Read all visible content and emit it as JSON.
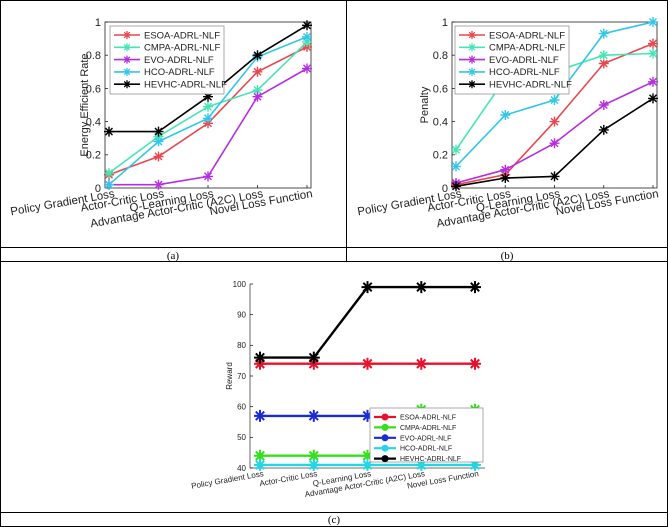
{
  "captions": {
    "a": "(a)",
    "b": "(b)",
    "c": "(c)"
  },
  "chart_data": [
    {
      "type": "line",
      "panel": "a",
      "ylabel": "Energy Efficient Rate",
      "ylim": [
        0,
        1
      ],
      "yticks": [
        "0",
        "0.2",
        "0.4",
        "0.6",
        "0.8",
        "1"
      ],
      "categories": [
        "Policy Gradient Loss",
        "Actor-Critic Loss",
        "Q-Learning Loss",
        "Advantage Actor-Critic (A2C) Loss",
        "Novel Loss Function"
      ],
      "legend_position": "top-left",
      "series": [
        {
          "name": "ESOA-ADRL-NLF",
          "color": "#e8474f",
          "values": [
            0.08,
            0.19,
            0.39,
            0.7,
            0.85
          ]
        },
        {
          "name": "CMPA-ADRL-NLF",
          "color": "#45e6b4",
          "values": [
            0.09,
            0.31,
            0.49,
            0.59,
            0.88
          ]
        },
        {
          "name": "EVO-ADRL-NLF",
          "color": "#b52ee0",
          "values": [
            0.02,
            0.02,
            0.07,
            0.55,
            0.72
          ]
        },
        {
          "name": "HCO-ADRL-NLF",
          "color": "#31c7e8",
          "values": [
            0.02,
            0.28,
            0.42,
            0.79,
            0.91
          ]
        },
        {
          "name": "HEVHC-ADRL-NLF",
          "color": "#000000",
          "values": [
            0.34,
            0.34,
            0.55,
            0.8,
            0.98
          ]
        }
      ]
    },
    {
      "type": "line",
      "panel": "b",
      "ylabel": "Penalty",
      "ylim": [
        0,
        1
      ],
      "yticks": [
        "0",
        "0.2",
        "0.4",
        "0.6",
        "0.8",
        "1"
      ],
      "categories": [
        "Policy Gradient Loss",
        "Actor-Critic Loss",
        "Q-Learning Loss",
        "Advantage Actor-Critic (A2C) Loss",
        "Novel Loss Function"
      ],
      "legend_position": "top-left",
      "series": [
        {
          "name": "ESOA-ADRL-NLF",
          "color": "#e8474f",
          "values": [
            0.02,
            0.08,
            0.4,
            0.75,
            0.87
          ]
        },
        {
          "name": "CMPA-ADRL-NLF",
          "color": "#45e6b4",
          "values": [
            0.23,
            0.66,
            0.7,
            0.8,
            0.81
          ]
        },
        {
          "name": "EVO-ADRL-NLF",
          "color": "#b52ee0",
          "values": [
            0.03,
            0.11,
            0.27,
            0.5,
            0.64
          ]
        },
        {
          "name": "HCO-ADRL-NLF",
          "color": "#31c7e8",
          "values": [
            0.13,
            0.44,
            0.53,
            0.93,
            1.0
          ]
        },
        {
          "name": "HEVHC-ADRL-NLF",
          "color": "#000000",
          "values": [
            0.01,
            0.06,
            0.07,
            0.35,
            0.54
          ]
        }
      ]
    },
    {
      "type": "line",
      "panel": "c",
      "ylabel": "Reward",
      "ylim": [
        40,
        100
      ],
      "yticks": [
        "40",
        "50",
        "60",
        "70",
        "80",
        "90",
        "100"
      ],
      "categories": [
        "Policy Gradient Loss",
        "Actor-Critic Loss",
        "Q-Learning Loss",
        "Advantage Actor-Critic (A2C) Loss",
        "Novel Loss Function"
      ],
      "legend_position": "lower-right",
      "series": [
        {
          "name": "ESOA-ADRL-NLF",
          "color": "#e8102a",
          "values": [
            74,
            74,
            74,
            74,
            74
          ]
        },
        {
          "name": "CMPA-ADRL-NLF",
          "color": "#33e01a",
          "values": [
            44,
            44,
            44,
            59,
            59
          ]
        },
        {
          "name": "EVO-ADRL-NLF",
          "color": "#1a2ad6",
          "values": [
            57,
            57,
            57,
            57,
            57
          ]
        },
        {
          "name": "HCO-ADRL-NLF",
          "color": "#22d6e6",
          "values": [
            41,
            41,
            41,
            41,
            41
          ]
        },
        {
          "name": "HEVHC-ADRL-NLF",
          "color": "#000000",
          "values": [
            76,
            76,
            99,
            99,
            99
          ]
        }
      ]
    }
  ]
}
